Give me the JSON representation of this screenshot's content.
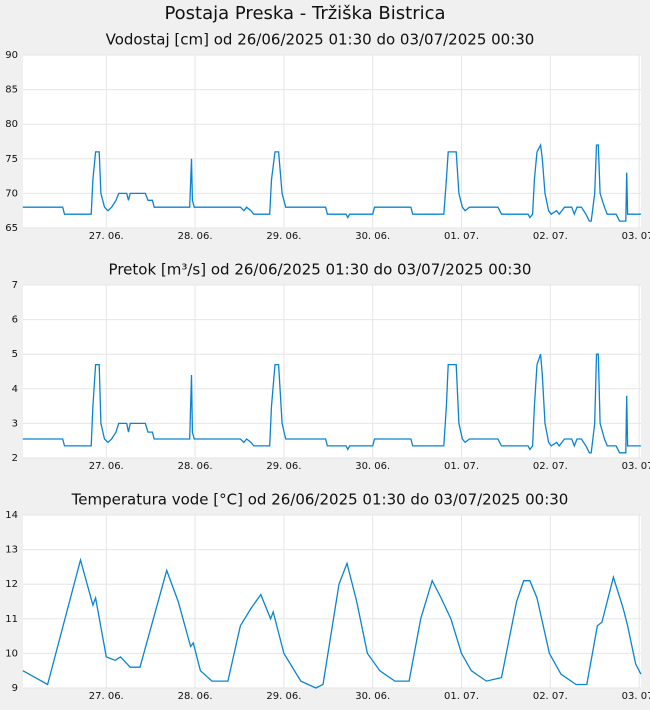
{
  "title": "Postaja Preska - Tržiška Bistrica",
  "chart_data": [
    {
      "type": "line",
      "title": "Vodostaj [cm] od 26/06/2025 01:30 do 03/07/2025 00:30",
      "color": "#0a84d0",
      "grid": true,
      "xlim": [
        26.0625,
        33.0208
      ],
      "xticks": [
        {
          "value": 27,
          "label": "27. 06."
        },
        {
          "value": 28,
          "label": "28. 06."
        },
        {
          "value": 29,
          "label": "29. 06."
        },
        {
          "value": 30,
          "label": "30. 06."
        },
        {
          "value": 31,
          "label": "01. 07."
        },
        {
          "value": 32,
          "label": "02. 07."
        },
        {
          "value": 33,
          "label": "03. 07."
        }
      ],
      "ylim": [
        65,
        90
      ],
      "yticks": [
        65,
        70,
        75,
        80,
        85,
        90
      ],
      "x": [
        26.06,
        26.51,
        26.53,
        26.83,
        26.85,
        26.88,
        26.92,
        26.94,
        26.98,
        27.02,
        27.06,
        27.11,
        27.14,
        27.23,
        27.25,
        27.27,
        27.44,
        27.47,
        27.52,
        27.54,
        27.94,
        27.96,
        27.97,
        27.99,
        28.51,
        28.55,
        28.58,
        28.63,
        28.66,
        28.84,
        28.86,
        28.9,
        28.94,
        28.98,
        29.02,
        29.47,
        29.49,
        29.7,
        29.72,
        29.74,
        30.0,
        30.02,
        30.43,
        30.45,
        30.8,
        30.83,
        30.85,
        30.94,
        30.97,
        31.01,
        31.04,
        31.09,
        31.41,
        31.45,
        31.75,
        31.77,
        31.8,
        31.82,
        31.85,
        31.89,
        31.91,
        31.94,
        31.98,
        32.01,
        32.07,
        32.1,
        32.16,
        32.24,
        32.27,
        32.3,
        32.35,
        32.4,
        32.44,
        32.46,
        32.5,
        32.52,
        32.54,
        32.56,
        32.61,
        32.64,
        32.74,
        32.78,
        32.85,
        32.86,
        32.87,
        33.02
      ],
      "values": [
        68,
        68,
        67,
        67,
        72,
        76,
        76,
        70,
        68,
        67.5,
        68,
        69,
        70,
        70,
        69,
        70,
        70,
        69,
        69,
        68,
        68,
        75,
        69,
        68,
        68,
        67.5,
        68,
        67.5,
        67,
        67,
        72,
        76,
        76,
        70,
        68,
        68,
        67,
        67,
        66.5,
        67,
        67,
        68,
        68,
        67,
        67,
        72,
        76,
        76,
        70,
        68,
        67.5,
        68,
        68,
        67,
        67,
        66.5,
        67,
        72,
        76,
        77,
        75,
        70,
        67.5,
        67,
        67.5,
        67,
        68,
        68,
        67,
        68,
        68,
        67,
        66,
        66,
        70,
        77,
        77,
        70,
        68,
        67,
        67,
        66,
        66,
        73,
        67,
        67
      ]
    },
    {
      "type": "line",
      "title": "Pretok [m³/s] od 26/06/2025 01:30 do 03/07/2025 00:30",
      "color": "#0a84d0",
      "grid": true,
      "xlim": [
        26.0625,
        33.0208
      ],
      "xticks": [
        {
          "value": 27,
          "label": "27. 06."
        },
        {
          "value": 28,
          "label": "28. 06."
        },
        {
          "value": 29,
          "label": "29. 06."
        },
        {
          "value": 30,
          "label": "30. 06."
        },
        {
          "value": 31,
          "label": "01. 07."
        },
        {
          "value": 32,
          "label": "02. 07."
        },
        {
          "value": 33,
          "label": "03. 07."
        }
      ],
      "ylim": [
        2,
        7
      ],
      "yticks": [
        2,
        3,
        4,
        5,
        6,
        7
      ],
      "x": [
        26.06,
        26.51,
        26.53,
        26.83,
        26.85,
        26.88,
        26.92,
        26.94,
        26.98,
        27.02,
        27.06,
        27.11,
        27.14,
        27.23,
        27.25,
        27.27,
        27.44,
        27.47,
        27.52,
        27.54,
        27.94,
        27.96,
        27.97,
        27.99,
        28.51,
        28.55,
        28.58,
        28.63,
        28.66,
        28.84,
        28.86,
        28.9,
        28.94,
        28.98,
        29.02,
        29.47,
        29.49,
        29.7,
        29.72,
        29.74,
        30.0,
        30.02,
        30.43,
        30.45,
        30.8,
        30.83,
        30.85,
        30.94,
        30.97,
        31.01,
        31.04,
        31.09,
        31.41,
        31.45,
        31.75,
        31.77,
        31.8,
        31.82,
        31.85,
        31.89,
        31.91,
        31.94,
        31.98,
        32.01,
        32.07,
        32.1,
        32.16,
        32.24,
        32.27,
        32.3,
        32.35,
        32.4,
        32.44,
        32.46,
        32.5,
        32.52,
        32.54,
        32.56,
        32.61,
        32.64,
        32.74,
        32.78,
        32.85,
        32.86,
        32.87,
        33.02
      ],
      "values": [
        2.55,
        2.55,
        2.35,
        2.35,
        3.5,
        4.7,
        4.7,
        3.0,
        2.55,
        2.45,
        2.55,
        2.75,
        3.0,
        3.0,
        2.75,
        3.0,
        3.0,
        2.75,
        2.75,
        2.55,
        2.55,
        4.4,
        2.75,
        2.55,
        2.55,
        2.45,
        2.55,
        2.45,
        2.35,
        2.35,
        3.5,
        4.7,
        4.7,
        3.0,
        2.55,
        2.55,
        2.35,
        2.35,
        2.25,
        2.35,
        2.35,
        2.55,
        2.55,
        2.35,
        2.35,
        3.5,
        4.7,
        4.7,
        3.0,
        2.55,
        2.45,
        2.55,
        2.55,
        2.35,
        2.35,
        2.25,
        2.35,
        3.5,
        4.7,
        5.0,
        4.4,
        3.0,
        2.45,
        2.35,
        2.45,
        2.35,
        2.55,
        2.55,
        2.35,
        2.55,
        2.55,
        2.35,
        2.15,
        2.15,
        3.0,
        5.0,
        5.0,
        3.0,
        2.55,
        2.35,
        2.35,
        2.15,
        2.15,
        3.8,
        2.35,
        2.35
      ]
    },
    {
      "type": "line",
      "title": "Temperatura vode [°C] od 26/06/2025 01:30 do 03/07/2025 00:30",
      "color": "#0a84d0",
      "grid": true,
      "xlim": [
        26.0625,
        33.0208
      ],
      "xticks": [
        {
          "value": 27,
          "label": "27. 06."
        },
        {
          "value": 28,
          "label": "28. 06."
        },
        {
          "value": 29,
          "label": "29. 06."
        },
        {
          "value": 30,
          "label": "30. 06."
        },
        {
          "value": 31,
          "label": "01. 07."
        },
        {
          "value": 32,
          "label": "02. 07."
        },
        {
          "value": 33,
          "label": "03. 07."
        }
      ],
      "ylim": [
        9,
        14
      ],
      "yticks": [
        9,
        10,
        11,
        12,
        13,
        14
      ],
      "x": [
        26.06,
        26.2,
        26.34,
        26.71,
        26.85,
        26.88,
        27.0,
        27.1,
        27.16,
        27.27,
        27.38,
        27.68,
        27.81,
        27.95,
        27.98,
        28.06,
        28.19,
        28.37,
        28.51,
        28.63,
        28.74,
        28.85,
        28.88,
        29.0,
        29.19,
        29.36,
        29.44,
        29.62,
        29.71,
        29.82,
        29.94,
        30.08,
        30.25,
        30.41,
        30.54,
        30.67,
        30.77,
        30.88,
        31.0,
        31.11,
        31.28,
        31.45,
        31.62,
        31.7,
        31.77,
        31.85,
        31.99,
        32.12,
        32.29,
        32.41,
        32.53,
        32.58,
        32.71,
        32.82,
        32.87,
        32.96,
        33.02
      ],
      "values": [
        9.5,
        9.3,
        9.1,
        12.7,
        11.4,
        11.6,
        9.9,
        9.8,
        9.9,
        9.6,
        9.6,
        12.4,
        11.5,
        10.2,
        10.3,
        9.5,
        9.2,
        9.2,
        10.8,
        11.3,
        11.7,
        11.0,
        11.2,
        10.0,
        9.2,
        9.0,
        9.1,
        12.0,
        12.6,
        11.5,
        10.0,
        9.5,
        9.2,
        9.2,
        11.0,
        12.1,
        11.6,
        11.0,
        10.0,
        9.5,
        9.2,
        9.3,
        11.5,
        12.1,
        12.1,
        11.6,
        10.0,
        9.4,
        9.1,
        9.1,
        10.8,
        10.9,
        12.2,
        11.3,
        10.8,
        9.7,
        9.4
      ]
    }
  ]
}
